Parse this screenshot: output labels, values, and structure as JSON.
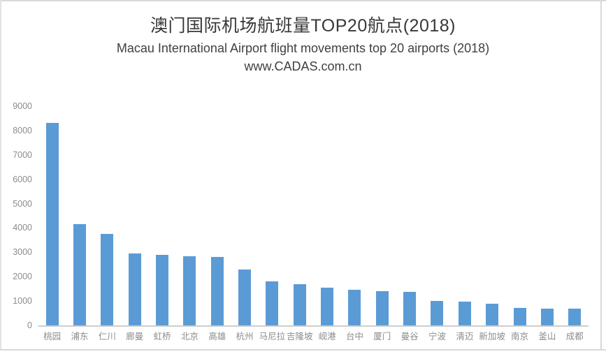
{
  "header": {
    "title": "澳门国际机场航班量TOP20航点(2018)",
    "subtitle": "Macau International Airport  flight movements top 20 airports (2018)",
    "website": "www.CADAS.com.cn"
  },
  "chart_data": {
    "type": "bar",
    "title": "澳门国际机场航班量TOP20航点(2018)",
    "subtitle": "Macau International Airport  flight movements top 20 airports (2018)",
    "source": "www.CADAS.com.cn",
    "categories": [
      "桃园",
      "浦东",
      "仁川",
      "廊曼",
      "虹桥",
      "北京",
      "高雄",
      "杭州",
      "马尼拉",
      "吉隆坡",
      "岘港",
      "台中",
      "厦门",
      "曼谷",
      "宁波",
      "清迈",
      "新加坡",
      "南京",
      "釜山",
      "成都"
    ],
    "values": [
      8300,
      4150,
      3750,
      2950,
      2900,
      2850,
      2800,
      2300,
      1800,
      1700,
      1550,
      1450,
      1400,
      1390,
      1000,
      980,
      900,
      710,
      700,
      690
    ],
    "xlabel": "",
    "ylabel": "",
    "ylim": [
      0,
      9000
    ],
    "yticks": [
      0,
      1000,
      2000,
      3000,
      4000,
      5000,
      6000,
      7000,
      8000,
      9000
    ],
    "grid": false,
    "legend": false,
    "colors": {
      "bar": "#5b9bd5",
      "axis_line": "#cdcdcd",
      "tick_text": "#8c8c8c",
      "title_text": "#383838",
      "border": "#d9d9d9"
    }
  }
}
